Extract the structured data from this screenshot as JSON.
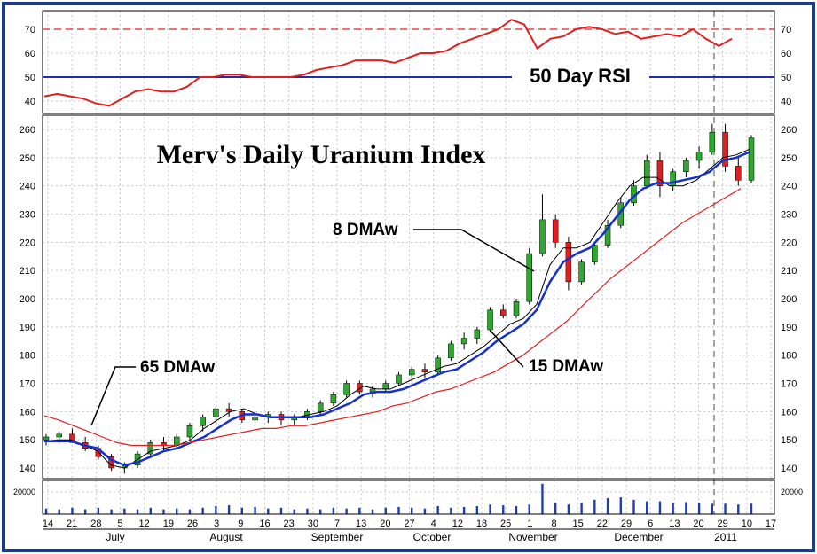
{
  "chart_data": {
    "type": "line",
    "title": "Merv's Daily Uranium Index",
    "colors": {
      "frame": "#1a3d8f",
      "rsi_line": "#e02020",
      "rsi_level_70": "#e02020",
      "rsi_level_50": "#1f2fa8",
      "ma8": "#000000",
      "ma15": "#1530d0",
      "ma65": "#e02020",
      "candle_up": "#2ea82e",
      "candle_down": "#e02020",
      "volume": "#1f3fb0",
      "event_line": "#888888"
    },
    "rsi_panel": {
      "label": "50 Day RSI",
      "ylim": [
        30,
        75
      ],
      "ticks": [
        "70",
        "60",
        "50",
        "40"
      ],
      "levels": [
        70,
        50
      ],
      "rsi": [
        42,
        43,
        42,
        41,
        39,
        38,
        41,
        44,
        45,
        44,
        44,
        46,
        50,
        50,
        51,
        51,
        50,
        50,
        50,
        50,
        51,
        53,
        54,
        55,
        57,
        57,
        57,
        56,
        58,
        60,
        60,
        61,
        64,
        66,
        68,
        70,
        74,
        72,
        62,
        66,
        67,
        70,
        71,
        70,
        68,
        69,
        66,
        67,
        68,
        67,
        70,
        66,
        63,
        66
      ]
    },
    "price_panel": {
      "ylim": [
        133,
        265
      ],
      "ticks": [
        "260",
        "250",
        "240",
        "230",
        "220",
        "210",
        "200",
        "190",
        "180",
        "170",
        "160",
        "150",
        "140"
      ],
      "series": [
        {
          "name": "8 DMAw",
          "values": [
            149.5,
            150,
            150,
            148,
            146,
            141,
            140,
            143,
            146,
            147,
            148,
            150,
            154,
            157,
            160,
            161,
            159,
            158,
            158,
            158,
            159,
            160,
            162,
            166,
            169,
            168,
            168,
            170,
            172,
            174,
            176,
            177,
            180,
            183,
            187,
            191,
            193,
            198,
            212,
            218,
            218,
            220,
            227,
            234,
            240,
            243,
            243,
            240,
            240,
            242,
            246,
            250,
            251,
            253
          ]
        },
        {
          "name": "15 DMAw",
          "values": [
            149.5,
            149.5,
            149.5,
            148,
            147,
            143,
            141,
            142,
            144,
            146,
            147,
            149,
            151,
            154,
            157,
            159,
            159,
            158,
            158,
            158,
            158,
            159,
            161,
            163,
            166,
            167,
            167,
            168,
            170,
            172,
            174,
            175,
            178,
            181,
            185,
            188,
            191,
            196,
            206,
            213,
            216,
            218,
            223,
            229,
            235,
            239,
            241,
            241,
            242,
            243,
            245,
            249,
            250,
            252
          ]
        },
        {
          "name": "65 DMAw",
          "values": [
            158.5,
            157,
            155,
            153,
            151,
            149,
            148,
            148,
            148,
            148,
            149,
            150,
            151,
            152,
            153,
            154,
            154,
            155,
            155,
            156,
            157,
            158,
            159,
            160,
            162,
            163,
            165,
            167,
            168,
            170,
            172,
            174,
            177,
            180,
            184,
            188,
            192,
            197,
            202,
            207,
            211,
            215,
            219,
            223,
            227,
            230,
            233,
            236,
            239
          ]
        }
      ],
      "ohlc": [
        [
          150,
          152,
          148,
          151
        ],
        [
          151,
          153,
          149,
          152
        ],
        [
          152,
          154,
          149,
          149
        ],
        [
          149,
          151,
          146,
          147
        ],
        [
          147,
          148,
          143,
          144
        ],
        [
          144,
          145,
          139,
          140
        ],
        [
          140,
          142,
          138,
          141
        ],
        [
          141,
          146,
          140,
          145
        ],
        [
          145,
          150,
          144,
          149
        ],
        [
          149,
          151,
          146,
          148
        ],
        [
          148,
          152,
          147,
          151
        ],
        [
          151,
          156,
          150,
          155
        ],
        [
          155,
          159,
          153,
          158
        ],
        [
          158,
          162,
          156,
          161
        ],
        [
          161,
          163,
          158,
          160
        ],
        [
          160,
          161,
          156,
          157
        ],
        [
          157,
          159,
          155,
          158
        ],
        [
          158,
          160,
          156,
          159
        ],
        [
          159,
          160,
          155,
          157
        ],
        [
          157,
          159,
          155,
          158
        ],
        [
          158,
          161,
          157,
          160
        ],
        [
          160,
          164,
          159,
          163
        ],
        [
          163,
          167,
          162,
          166
        ],
        [
          166,
          171,
          165,
          170
        ],
        [
          170,
          171,
          166,
          167
        ],
        [
          167,
          169,
          165,
          168
        ],
        [
          168,
          171,
          167,
          170
        ],
        [
          170,
          174,
          169,
          173
        ],
        [
          173,
          176,
          171,
          175
        ],
        [
          175,
          177,
          172,
          174
        ],
        [
          174,
          180,
          173,
          179
        ],
        [
          179,
          185,
          178,
          184
        ],
        [
          184,
          188,
          182,
          186
        ],
        [
          186,
          190,
          184,
          189
        ],
        [
          189,
          197,
          188,
          196
        ],
        [
          196,
          198,
          193,
          194
        ],
        [
          194,
          200,
          193,
          199
        ],
        [
          199,
          218,
          198,
          216
        ],
        [
          216,
          237,
          215,
          228
        ],
        [
          228,
          230,
          218,
          220
        ],
        [
          220,
          222,
          203,
          206
        ],
        [
          206,
          214,
          205,
          213
        ],
        [
          213,
          220,
          212,
          219
        ],
        [
          219,
          228,
          218,
          226
        ],
        [
          226,
          236,
          225,
          234
        ],
        [
          234,
          242,
          233,
          240
        ],
        [
          240,
          251,
          239,
          249
        ],
        [
          249,
          252,
          236,
          240
        ],
        [
          240,
          246,
          238,
          245
        ],
        [
          245,
          250,
          243,
          249
        ],
        [
          249,
          254,
          246,
          252
        ],
        [
          252,
          262,
          251,
          259
        ],
        [
          259,
          262,
          245,
          247
        ],
        [
          247,
          250,
          240,
          242
        ],
        [
          242,
          258,
          241,
          257
        ]
      ],
      "callouts": [
        "8 DMAw",
        "15 DMAw",
        "65 DMAw"
      ]
    },
    "volume_panel": {
      "tick": "20000",
      "values": [
        3.5,
        3,
        4,
        3,
        4,
        3,
        3.5,
        3,
        4,
        3,
        3.5,
        3,
        4,
        5,
        5.5,
        4,
        4.5,
        3.5,
        4,
        3,
        3.5,
        3,
        4,
        3.5,
        4,
        3,
        4,
        4.5,
        4,
        3.5,
        5,
        4,
        4.5,
        5,
        6,
        5.5,
        5,
        6,
        19,
        7,
        6,
        7,
        9,
        10,
        10.5,
        9,
        8,
        8,
        7,
        7.5,
        7,
        6.5,
        6.5,
        6,
        6.5
      ]
    },
    "x_axis": {
      "day_ticks": [
        "14",
        "21",
        "28",
        "5",
        "12",
        "19",
        "26",
        "3",
        "9",
        "16",
        "23",
        "30",
        "7",
        "13",
        "20",
        "27",
        "4",
        "12",
        "18",
        "25",
        "1",
        "8",
        "15",
        "22",
        "29",
        "6",
        "13",
        "20",
        "29",
        "10",
        "17"
      ],
      "months": [
        "July",
        "August",
        "September",
        "October",
        "November",
        "December",
        "2011"
      ]
    }
  }
}
